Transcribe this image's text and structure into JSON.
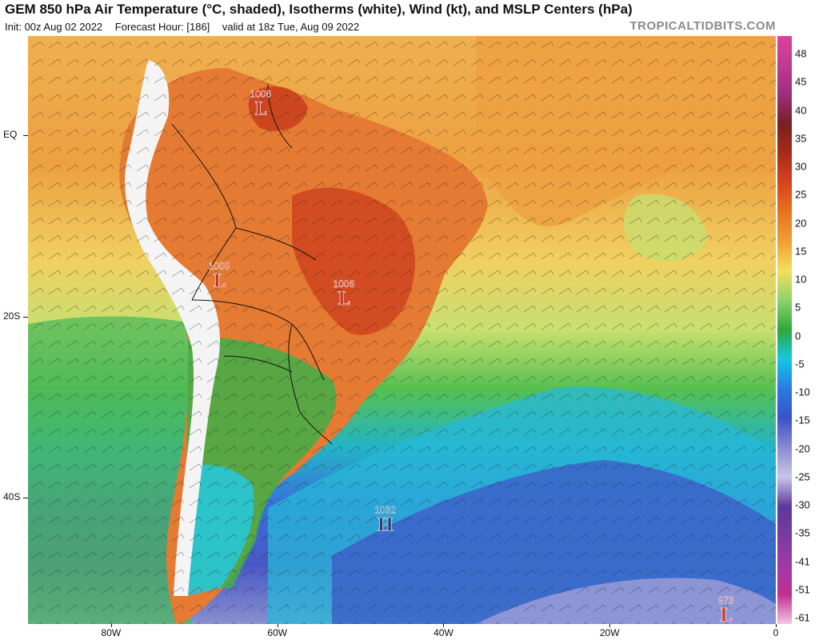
{
  "header": {
    "title": "GEM 850 hPa Air Temperature (°C, shaded), Isotherms (white), Wind (kt), and MSLP Centers (hPa)",
    "init": "Init: 00z Aug 02 2022",
    "forecast_hour": "Forecast Hour: [186]",
    "valid": "valid at 18z Tue, Aug 09 2022",
    "watermark": "TROPICALTIDBITS.COM"
  },
  "axes": {
    "lat_labels": [
      "EQ",
      "20S",
      "40S"
    ],
    "lon_labels": [
      "80W",
      "60W",
      "40W",
      "20W",
      "0"
    ]
  },
  "colorbar": {
    "labels": [
      "48",
      "45",
      "40",
      "35",
      "30",
      "25",
      "20",
      "15",
      "10",
      "5",
      "0",
      "-5",
      "-10",
      "-15",
      "-20",
      "-25",
      "-30",
      "-35",
      "-41",
      "-51",
      "-61"
    ],
    "colors": [
      "#e040a0",
      "#c0398f",
      "#9c2f7e",
      "#7a1f1f",
      "#a82c1a",
      "#d8431e",
      "#e8731f",
      "#f0a035",
      "#f2e05a",
      "#8fd26a",
      "#2da83a",
      "#16c7e6",
      "#2a7ae0",
      "#3a52c8",
      "#8a8ad0",
      "#c8c6ea",
      "#5b3a9a",
      "#7a3aa0",
      "#a03aa8",
      "#c03090",
      "#f2c6e6"
    ]
  },
  "pressure_centers": [
    {
      "type": "L",
      "value": "1006",
      "color": "#c0392b",
      "lon": -62,
      "lat": 3
    },
    {
      "type": "L",
      "value": "1000",
      "color": "#c0392b",
      "lon": -67,
      "lat": -16
    },
    {
      "type": "L",
      "value": "1006",
      "color": "#c0392b",
      "lon": -52,
      "lat": -18
    },
    {
      "type": "H",
      "value": "1032",
      "color": "#2e3d7a",
      "lon": -47,
      "lat": -43
    },
    {
      "type": "L",
      "value": "973",
      "color": "#c0392b",
      "lon": -6,
      "lat": -53
    }
  ]
}
